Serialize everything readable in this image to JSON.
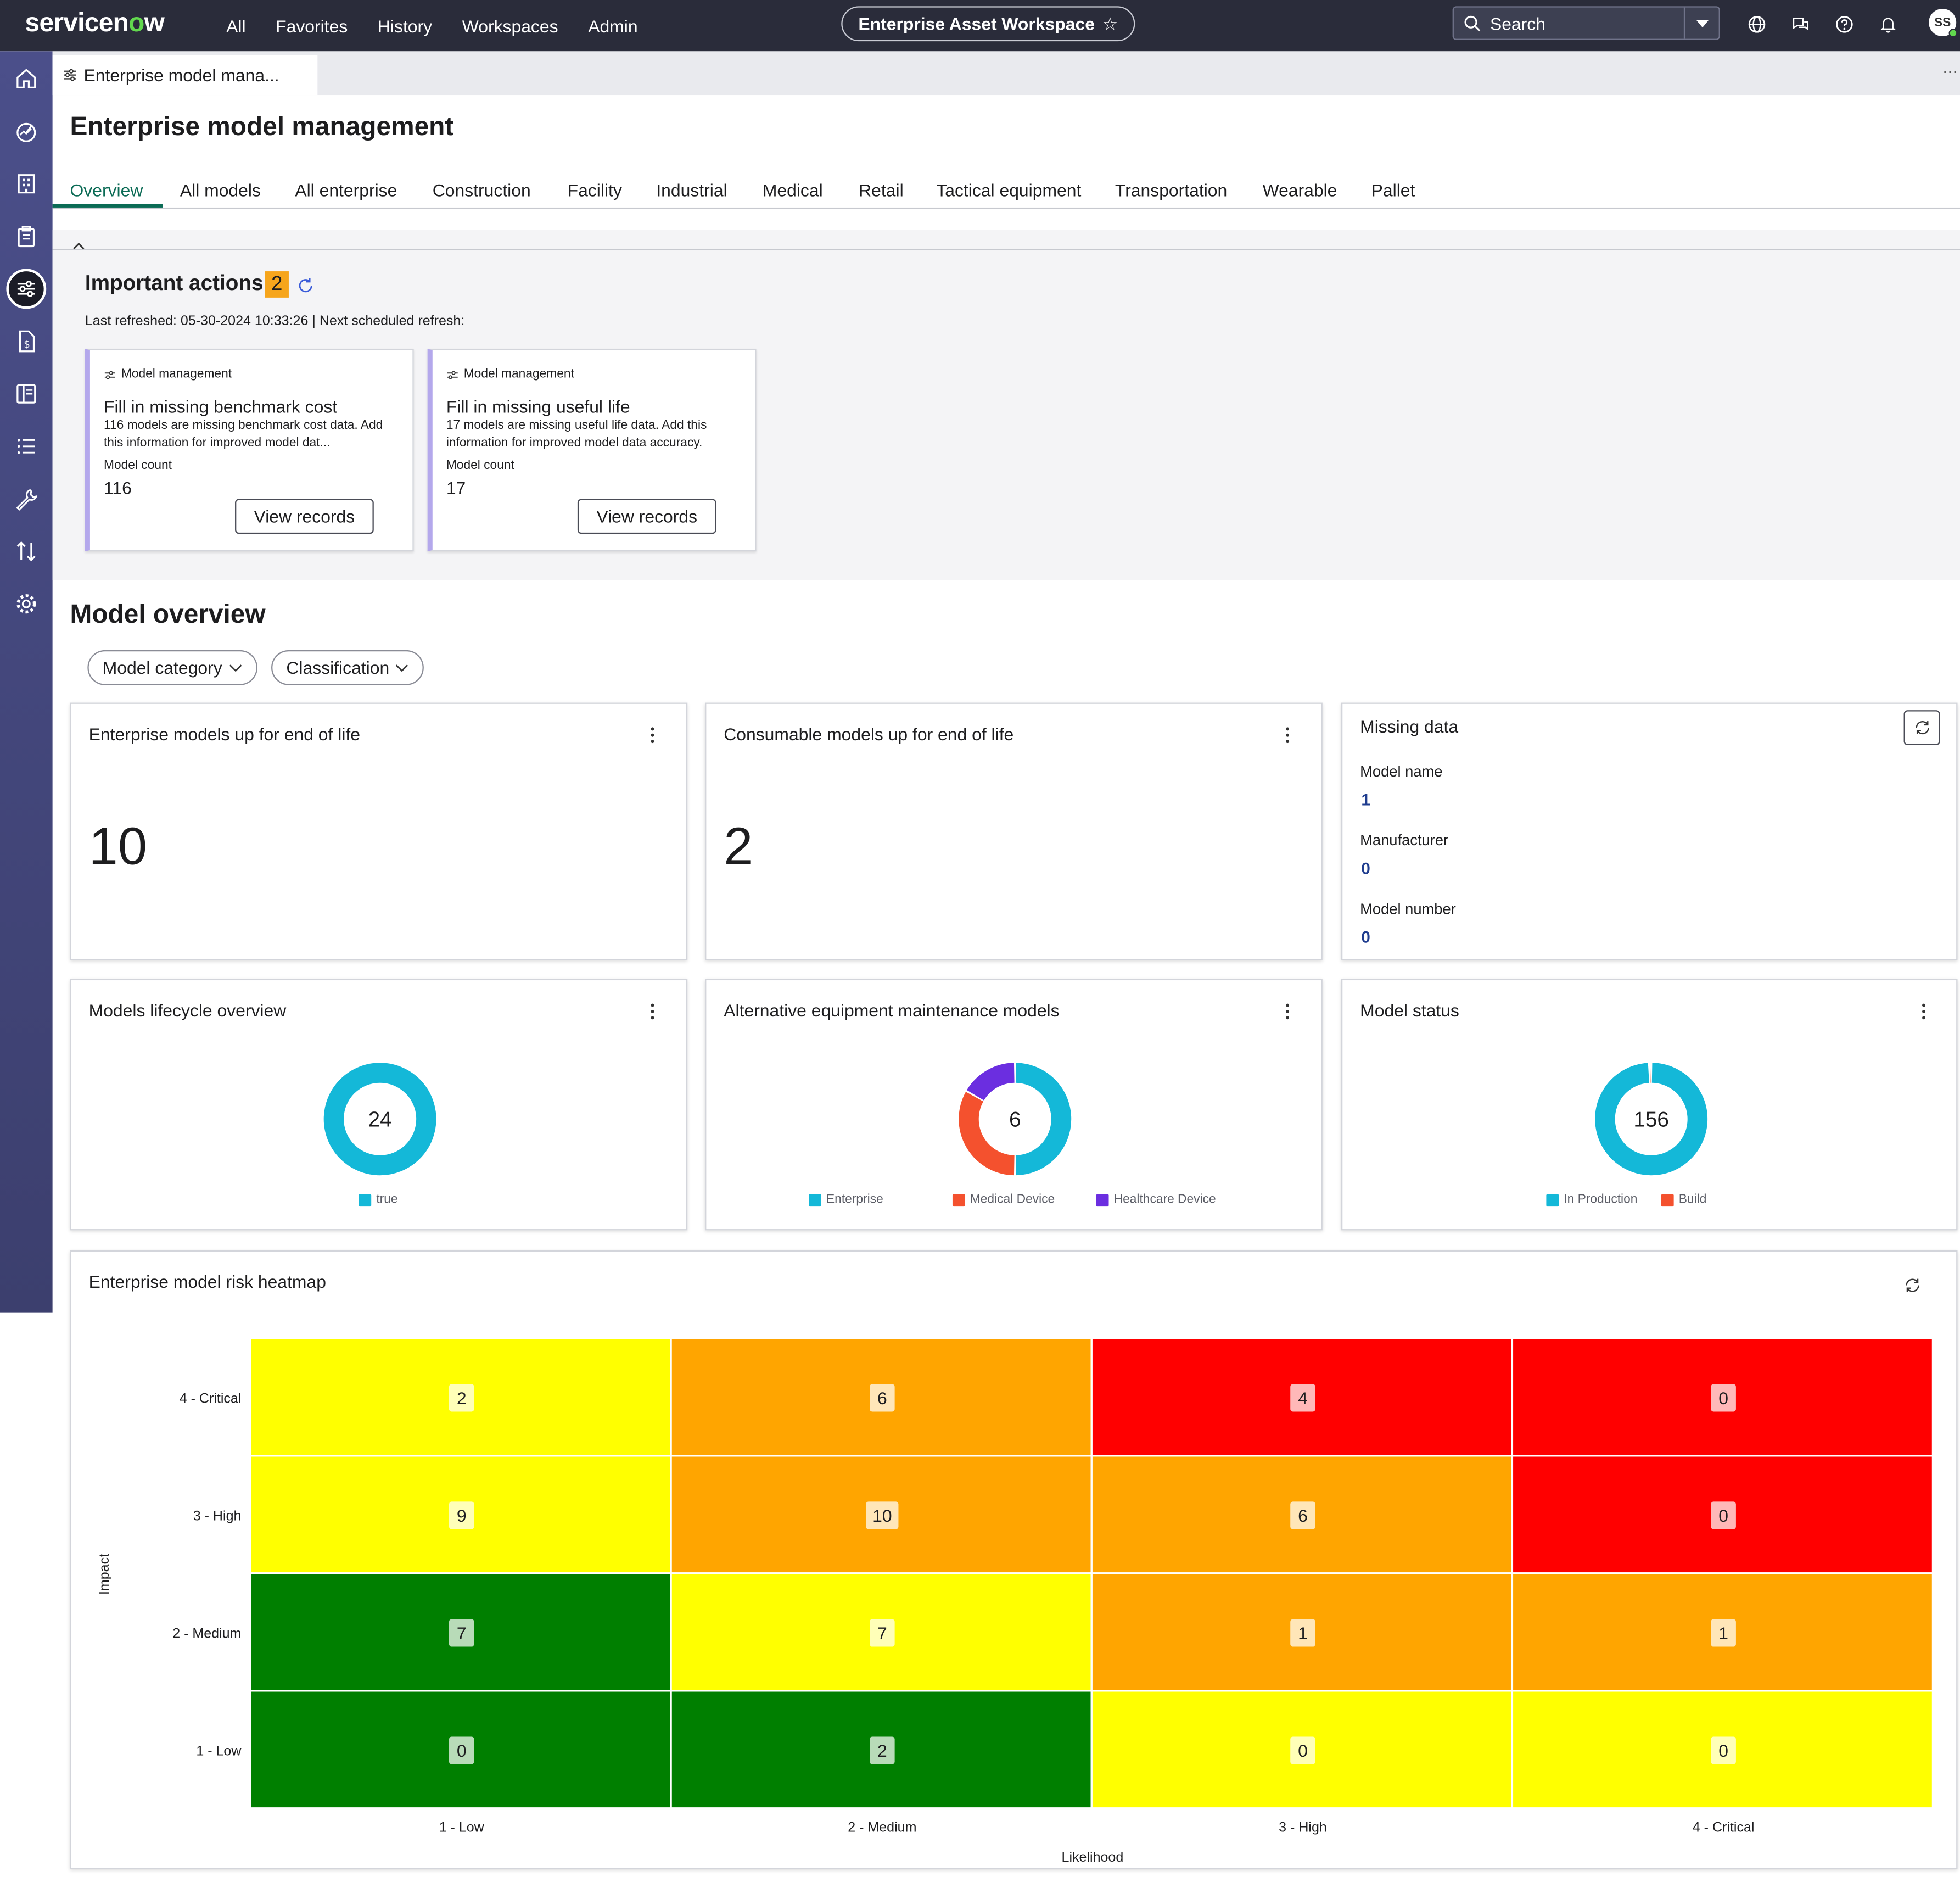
{
  "colors": {
    "topbar": "#2a2c3a",
    "rail": "#3c3f6e",
    "accent_green": "#0b6b55",
    "cyan": "#14b8d8",
    "orange_red": "#f4512e",
    "purple": "#6b2ee0",
    "heat_yellow": "#ffff00",
    "heat_orange": "#ffa500",
    "heat_red": "#ff0000",
    "heat_green": "#007f00"
  },
  "topbar": {
    "logo_main": "servicen",
    "logo_o": "o",
    "logo_end": "w",
    "nav": [
      "All",
      "Favorites",
      "History",
      "Workspaces",
      "Admin"
    ],
    "workspace": "Enterprise Asset Workspace",
    "star_icon": "star-outline-icon",
    "search_label": "Search",
    "avatar": "SS"
  },
  "sidebar": {
    "icons": [
      "home-icon",
      "dashboard-icon",
      "building-icon",
      "clipboard-icon",
      "sliders-icon",
      "invoice-icon",
      "catalog-icon",
      "list-icon",
      "wrench-icon",
      "transfer-icon",
      "gear-icon"
    ]
  },
  "tabstrip": {
    "tab_label": "Enterprise model mana...",
    "more": "···"
  },
  "page": {
    "title": "Enterprise model management",
    "tabs": [
      "Overview",
      "All models",
      "All enterprise",
      "Construction",
      "Facility",
      "Industrial",
      "Medical",
      "Retail",
      "Tactical equipment",
      "Transportation",
      "Wearable",
      "Pallet"
    ]
  },
  "important_actions": {
    "title": "Important actions",
    "count": "2",
    "last_refreshed": "Last refreshed: 05-30-2024 10:33:26 | Next scheduled refresh:",
    "cards": [
      {
        "category": "Model management",
        "title": "Fill in missing benchmark cost",
        "desc": "116 models are missing benchmark cost data. Add this information for improved model dat...",
        "count_label": "Model count",
        "count": "116",
        "button": "View records"
      },
      {
        "category": "Model management",
        "title": "Fill in missing useful life",
        "desc": "17 models are missing useful life data. Add this information for improved model data accuracy.",
        "count_label": "Model count",
        "count": "17",
        "button": "View records"
      }
    ]
  },
  "model_overview": {
    "title": "Model overview",
    "filters": [
      "Model category",
      "Classification"
    ],
    "enterprise_eol": {
      "title": "Enterprise models up for end of life",
      "value": "10"
    },
    "consumable_eol": {
      "title": "Consumable models up for end of life",
      "value": "2"
    },
    "missing_data": {
      "title": "Missing data",
      "items": [
        {
          "label": "Model name",
          "value": "1"
        },
        {
          "label": "Manufacturer",
          "value": "0"
        },
        {
          "label": "Model number",
          "value": "0"
        }
      ]
    },
    "lifecycle": {
      "title": "Models lifecycle overview",
      "total": "24",
      "legend": [
        "true"
      ]
    },
    "alt_maintenance": {
      "title": "Alternative equipment maintenance models",
      "total": "6",
      "legend": [
        "Enterprise",
        "Medical Device",
        "Healthcare Device"
      ]
    },
    "model_status": {
      "title": "Model status",
      "total": "156",
      "legend": [
        "In Production",
        "Build"
      ]
    }
  },
  "chart_data": [
    {
      "type": "pie",
      "title": "Models lifecycle overview",
      "categories": [
        "true"
      ],
      "values": [
        24
      ],
      "total": 24
    },
    {
      "type": "pie",
      "title": "Alternative equipment maintenance models",
      "categories": [
        "Enterprise",
        "Medical Device",
        "Healthcare Device"
      ],
      "values": [
        3,
        2,
        1
      ],
      "total": 6
    },
    {
      "type": "pie",
      "title": "Model status",
      "categories": [
        "In Production",
        "Build"
      ],
      "values": [
        155,
        1
      ],
      "total": 156
    },
    {
      "type": "heatmap",
      "title": "Enterprise model risk heatmap",
      "xlabel": "Likelihood",
      "ylabel": "Impact",
      "x": [
        "1 - Low",
        "2 - Medium",
        "3 - High",
        "4 - Critical"
      ],
      "y": [
        "4 - Critical",
        "3 - High",
        "2 - Medium",
        "1 - Low"
      ],
      "values": [
        [
          2,
          6,
          4,
          0
        ],
        [
          9,
          10,
          6,
          0
        ],
        [
          7,
          7,
          1,
          1
        ],
        [
          0,
          2,
          0,
          0
        ]
      ],
      "cell_colors": [
        [
          "#ffff00",
          "#ffa500",
          "#ff0000",
          "#ff0000"
        ],
        [
          "#ffff00",
          "#ffa500",
          "#ffa500",
          "#ff0000"
        ],
        [
          "#007f00",
          "#ffff00",
          "#ffa500",
          "#ffa500"
        ],
        [
          "#007f00",
          "#007f00",
          "#ffff00",
          "#ffff00"
        ]
      ]
    }
  ]
}
